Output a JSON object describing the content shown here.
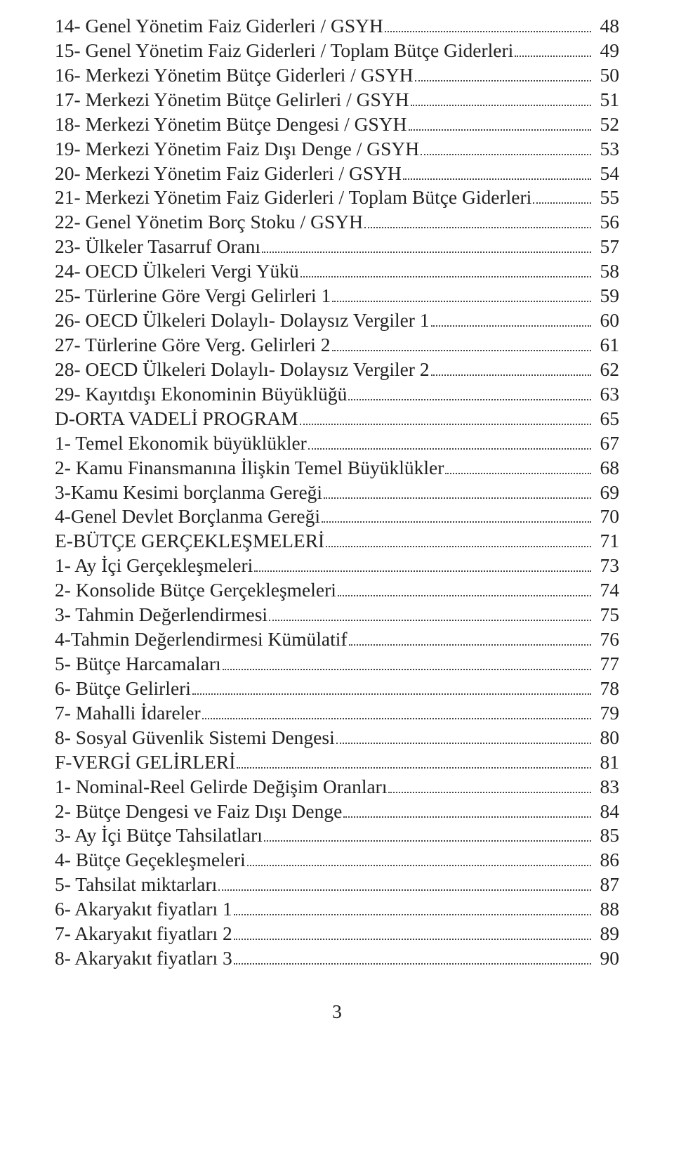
{
  "text_color": "#222222",
  "background_color": "#ffffff",
  "font_family": "serif",
  "base_fontsize_pt": 21,
  "page_number": "3",
  "entries": [
    {
      "label": "14- Genel Yönetim Faiz Giderleri / GSYH",
      "page": "48"
    },
    {
      "label": "15- Genel Yönetim Faiz Giderleri / Toplam Bütçe Giderleri",
      "page": "49"
    },
    {
      "label": "16- Merkezi Yönetim Bütçe Giderleri / GSYH",
      "page": "50"
    },
    {
      "label": "17- Merkezi Yönetim Bütçe Gelirleri / GSYH",
      "page": "51"
    },
    {
      "label": "18- Merkezi Yönetim Bütçe Dengesi / GSYH",
      "page": "52"
    },
    {
      "label": "19- Merkezi Yönetim Faiz Dışı Denge / GSYH",
      "page": "53"
    },
    {
      "label": "20- Merkezi Yönetim Faiz Giderleri / GSYH",
      "page": "54"
    },
    {
      "label": "21- Merkezi Yönetim Faiz Giderleri / Toplam Bütçe Giderleri",
      "page": "55"
    },
    {
      "label": "22- Genel Yönetim Borç Stoku / GSYH",
      "page": "56"
    },
    {
      "label": "23- Ülkeler Tasarruf Oranı",
      "page": "57"
    },
    {
      "label": "24- OECD Ülkeleri Vergi Yükü",
      "page": "58"
    },
    {
      "label": "25- Türlerine Göre Vergi Gelirleri 1",
      "page": "59"
    },
    {
      "label": "26- OECD Ülkeleri Dolaylı- Dolaysız Vergiler 1",
      "page": "60"
    },
    {
      "label": "27- Türlerine Göre Verg. Gelirleri 2",
      "page": "61"
    },
    {
      "label": "28- OECD Ülkeleri Dolaylı- Dolaysız Vergiler 2",
      "page": "62"
    },
    {
      "label": "29- Kayıtdışı Ekonominin Büyüklüğü",
      "page": "63"
    },
    {
      "label": "D-ORTA VADELİ PROGRAM",
      "page": "65"
    },
    {
      "label": "1- Temel Ekonomik büyüklükler",
      "page": "67"
    },
    {
      "label": "2- Kamu Finansmanına İlişkin Temel Büyüklükler",
      "page": "68"
    },
    {
      "label": "3-Kamu Kesimi borçlanma Gereği",
      "page": "69"
    },
    {
      "label": "4-Genel Devlet Borçlanma Gereği",
      "page": "70"
    },
    {
      "label": "E-BÜTÇE GERÇEKLEŞMELERİ",
      "page": "71"
    },
    {
      "label": "1- Ay İçi Gerçekleşmeleri",
      "page": "73"
    },
    {
      "label": "2- Konsolide Bütçe Gerçekleşmeleri",
      "page": "74"
    },
    {
      "label": "3- Tahmin Değerlendirmesi",
      "page": "75"
    },
    {
      "label": "4-Tahmin Değerlendirmesi Kümülatif",
      "page": "76"
    },
    {
      "label": "5- Bütçe Harcamaları",
      "page": "77"
    },
    {
      "label": "6- Bütçe Gelirleri",
      "page": "78"
    },
    {
      "label": "7- Mahalli İdareler",
      "page": "79"
    },
    {
      "label": "8- Sosyal Güvenlik Sistemi Dengesi",
      "page": "80"
    },
    {
      "label": "F-VERGİ GELİRLERİ",
      "page": "81"
    },
    {
      "label": "1- Nominal-Reel Gelirde Değişim Oranları",
      "page": "83"
    },
    {
      "label": "2- Bütçe Dengesi ve Faiz Dışı Denge",
      "page": "84"
    },
    {
      "label": "3- Ay İçi Bütçe Tahsilatları",
      "page": "85"
    },
    {
      "label": "4- Bütçe Geçekleşmeleri ",
      "page": "86"
    },
    {
      "label": "5- Tahsilat miktarları",
      "page": "87"
    },
    {
      "label": "6- Akaryakıt fiyatları 1",
      "page": "88"
    },
    {
      "label": "7- Akaryakıt fiyatları 2",
      "page": "89"
    },
    {
      "label": "8- Akaryakıt fiyatları 3",
      "page": "90"
    }
  ]
}
